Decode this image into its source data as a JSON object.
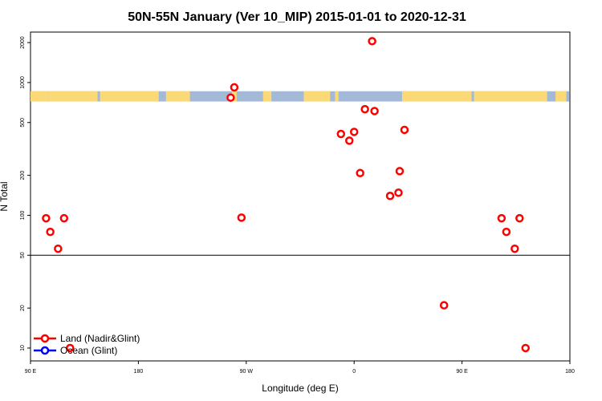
{
  "chart_data": {
    "type": "scatter",
    "title": "50N-55N January (Ver 10_MIP)   2015-01-01 to 2020-12-31",
    "xlabel": "Longitude (deg E)",
    "ylabel": "N Total",
    "x_ticks": [
      {
        "value": 90,
        "label": "90 E"
      },
      {
        "value": 180,
        "label": "180"
      },
      {
        "value": 270,
        "label": "90 W"
      },
      {
        "value": 360,
        "label": "0"
      },
      {
        "value": 450,
        "label": "90 E"
      },
      {
        "value": 540,
        "label": "180"
      }
    ],
    "xlim": [
      90,
      540
    ],
    "ylim": [
      8,
      2400
    ],
    "yscale": "log",
    "y_ticks": [
      {
        "value": 10,
        "label": "10"
      },
      {
        "value": 20,
        "label": "20"
      },
      {
        "value": 50,
        "label": "50"
      },
      {
        "value": 100,
        "label": "100"
      },
      {
        "value": 200,
        "label": "200"
      },
      {
        "value": 500,
        "label": "500"
      },
      {
        "value": 1000,
        "label": "1000"
      },
      {
        "value": 2000,
        "label": "2000"
      }
    ],
    "reference_line_y": 50,
    "surface_strip": {
      "y_low": 720,
      "y_high": 860,
      "land_color": "#FBD977",
      "ocean_color": "#A3B9D8"
    },
    "series": [
      {
        "name": "Land (Nadir&Glint)",
        "color": "#FF0000",
        "points": [
          {
            "x": 103,
            "y": 95
          },
          {
            "x": 106.5,
            "y": 75
          },
          {
            "x": 113,
            "y": 56
          },
          {
            "x": 118,
            "y": 95
          },
          {
            "x": 123,
            "y": 10
          },
          {
            "x": 257,
            "y": 770
          },
          {
            "x": 260,
            "y": 920
          },
          {
            "x": 266,
            "y": 96
          },
          {
            "x": 349,
            "y": 410
          },
          {
            "x": 356,
            "y": 365
          },
          {
            "x": 360,
            "y": 425
          },
          {
            "x": 365,
            "y": 208
          },
          {
            "x": 369,
            "y": 630
          },
          {
            "x": 375,
            "y": 2050
          },
          {
            "x": 377,
            "y": 610
          },
          {
            "x": 390,
            "y": 140
          },
          {
            "x": 397,
            "y": 148
          },
          {
            "x": 398,
            "y": 215
          },
          {
            "x": 402,
            "y": 440
          },
          {
            "x": 435,
            "y": 21
          },
          {
            "x": 483,
            "y": 95
          },
          {
            "x": 487,
            "y": 75
          },
          {
            "x": 494,
            "y": 56
          },
          {
            "x": 498,
            "y": 95
          },
          {
            "x": 503,
            "y": 10
          }
        ]
      },
      {
        "name": "Ocean (Glint)",
        "color": "#0000FF",
        "points": []
      }
    ],
    "legend_position": "bottom-left"
  }
}
